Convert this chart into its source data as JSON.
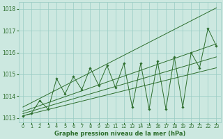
{
  "xlabel": "Graphe pression niveau de la mer (hPa)",
  "xlim": [
    -0.5,
    23.5
  ],
  "ylim": [
    1012.8,
    1018.3
  ],
  "yticks": [
    1013,
    1014,
    1015,
    1016,
    1017,
    1018
  ],
  "xticks": [
    0,
    1,
    2,
    3,
    4,
    5,
    6,
    7,
    8,
    9,
    10,
    11,
    12,
    13,
    14,
    15,
    16,
    17,
    18,
    19,
    20,
    21,
    22,
    23
  ],
  "background_color": "#cce8e0",
  "grid_color": "#99ccc4",
  "line_color": "#2d6e2d",
  "hours": [
    0,
    1,
    2,
    3,
    4,
    5,
    6,
    7,
    8,
    9,
    10,
    11,
    12,
    13,
    14,
    15,
    16,
    17,
    18,
    19,
    20,
    21,
    22,
    23
  ],
  "pressure": [
    1013.1,
    1013.2,
    1013.8,
    1013.4,
    1014.8,
    1014.1,
    1014.9,
    1014.3,
    1015.3,
    1014.5,
    1015.4,
    1014.4,
    1015.5,
    1013.5,
    1015.5,
    1013.4,
    1015.6,
    1013.4,
    1015.8,
    1013.5,
    1016.0,
    1015.3,
    1017.1,
    1016.3
  ],
  "trend_lines": [
    {
      "x0": 0,
      "y0": 1013.1,
      "x1": 23,
      "y1": 1015.3
    },
    {
      "x0": 0,
      "y0": 1013.2,
      "x1": 23,
      "y1": 1015.8
    },
    {
      "x0": 0,
      "y0": 1013.3,
      "x1": 23,
      "y1": 1016.4
    },
    {
      "x0": 0,
      "y0": 1013.5,
      "x1": 23,
      "y1": 1018.05
    }
  ]
}
